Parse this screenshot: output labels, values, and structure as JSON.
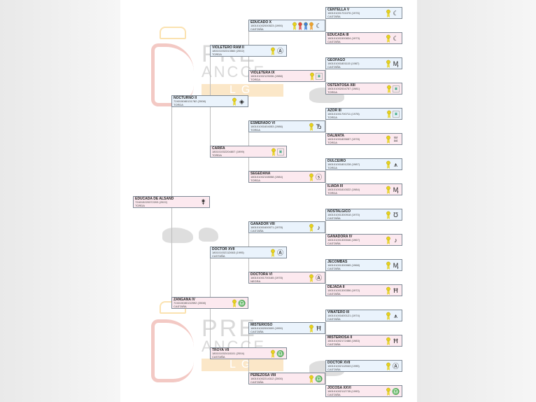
{
  "watermark": {
    "line1": "PRE",
    "line2": "ANCCE",
    "line3": "LG"
  },
  "colors": {
    "male_bg": "#eaf3fc",
    "female_bg": "#fce9ef",
    "border": "#7f8a96"
  },
  "medal_colors": {
    "yellow": "#e8d21a",
    "red": "#e04848",
    "blue": "#3d7fd8",
    "orange": "#f0a030"
  },
  "pedigree": [
    {
      "gen": 1,
      "pos": 0,
      "sex": "f",
      "name": "EDUCADA DE ALSAND",
      "id": "724015220372203 (2022)",
      "coat": "TORDA",
      "medals": [],
      "brand": "brand-glyph",
      "glyph": "⚵"
    },
    {
      "gen": 2,
      "pos": 0,
      "sex": "m",
      "name": "NOCTURNO II",
      "id": "724015080131782 (2008)",
      "coat": "TORDA",
      "medals": [
        "yellow"
      ],
      "brand": "diamond-brand",
      "glyph": "◈"
    },
    {
      "gen": 2,
      "pos": 1,
      "sex": "f",
      "name": "ZANGANA IV",
      "id": "724015080132592 (2008)",
      "coat": "CASTAÑA",
      "medals": [
        "yellow"
      ],
      "brand": "bell-brand",
      "glyph": "♎"
    },
    {
      "gen": 3,
      "pos": 0,
      "sex": "m",
      "name": "VIOLETERO RAM II",
      "id": "180101002313560 (2002)",
      "coat": "TORDA",
      "medals": [
        "yellow"
      ],
      "brand": "circled-a-brand",
      "glyph": "Ⓐ"
    },
    {
      "gen": 3,
      "pos": 1,
      "sex": "f",
      "name": "CARIFA",
      "id": "180101002204807 (1999)",
      "coat": "TORDA",
      "medals": [
        "yellow"
      ],
      "brand": "broken-image",
      "glyph": ""
    },
    {
      "gen": 3,
      "pos": 2,
      "sex": "m",
      "name": "DOCTOR XVII",
      "id": "180101002112663 (1995)",
      "coat": "CASTAÑA",
      "medals": [
        "yellow"
      ],
      "brand": "circled-a-brand",
      "glyph": "Ⓐ"
    },
    {
      "gen": 3,
      "pos": 3,
      "sex": "f",
      "name": "TROYA VII",
      "id": "180101002418101 (2004)",
      "coat": "CASTAÑA",
      "medals": [
        "yellow"
      ],
      "brand": "bell-brand",
      "glyph": "♎"
    },
    {
      "gen": 4,
      "pos": 0,
      "sex": "m",
      "name": "EDUCADO X",
      "id": "180101002000523 (1990)",
      "coat": "CASTAÑA",
      "medals": [
        "yellow",
        "red",
        "blue",
        "orange"
      ],
      "brand": "moon-brand",
      "glyph": "☾"
    },
    {
      "gen": 4,
      "pos": 1,
      "sex": "f",
      "name": "VIOLETERA IX",
      "id": "180101002125036 (1988)",
      "coat": "TORDA",
      "medals": [
        "yellow"
      ],
      "brand": "broken-image",
      "glyph": ""
    },
    {
      "gen": 4,
      "pos": 2,
      "sex": "m",
      "name": "ESMERADO VI",
      "id": "180101001604053 (1986)",
      "coat": "TORDA",
      "medals": [
        "yellow"
      ],
      "brand": "b-brand",
      "glyph": "Ђ"
    },
    {
      "gen": 4,
      "pos": 3,
      "sex": "f",
      "name": "SEGEDANA",
      "id": "180101002108058 (1984)",
      "coat": "TORDA",
      "medals": [
        "yellow"
      ],
      "brand": "circled-s-brand",
      "glyph": "ⓢ"
    },
    {
      "gen": 4,
      "pos": 4,
      "sex": "m",
      "name": "GANADOR VIII",
      "id": "180101001600071 (1978)",
      "coat": "CASTAÑA",
      "medals": [
        "yellow"
      ],
      "brand": "circled-note-brand",
      "glyph": "♪"
    },
    {
      "gen": 4,
      "pos": 5,
      "sex": "f",
      "name": "DOCTORA VI",
      "id": "180101001700165 (1978)",
      "coat": "NEGRA",
      "medals": [
        "yellow"
      ],
      "brand": "circled-a-brand",
      "glyph": "Ⓐ"
    },
    {
      "gen": 4,
      "pos": 6,
      "sex": "m",
      "name": "MISTERIOSO",
      "id": "180101002000009 (1990)",
      "coat": "CASTAÑA",
      "medals": [
        "yellow"
      ],
      "brand": "ladder-brand",
      "glyph": "Ħ"
    },
    {
      "gen": 4,
      "pos": 7,
      "sex": "f",
      "name": "PEREZOSA VIII",
      "id": "180101002214312 (2000)",
      "coat": "CASTAÑA",
      "medals": [
        "yellow"
      ],
      "brand": "bell-brand",
      "glyph": "♎"
    },
    {
      "gen": 5,
      "pos": 0,
      "sex": "m",
      "name": "CENTELLA V",
      "id": "180101001701076 (1976)",
      "coat": "CASTAÑA",
      "medals": [
        "yellow"
      ],
      "brand": "moon-brand",
      "glyph": "☾"
    },
    {
      "gen": 5,
      "pos": 1,
      "sex": "f",
      "name": "EDUCADA III",
      "id": "180101001500834 (1973)",
      "coat": "CASTAÑA",
      "medals": [
        "yellow"
      ],
      "brand": "moon-brand",
      "glyph": "☾"
    },
    {
      "gen": 5,
      "pos": 2,
      "sex": "m",
      "name": "GEOFAGO",
      "id": "180101001801115 (1987)",
      "coat": "CASTAÑA",
      "medals": [
        "yellow"
      ],
      "brand": "ym-brand",
      "glyph": "Ӎ"
    },
    {
      "gen": 5,
      "pos": 3,
      "sex": "f",
      "name": "OSTENTOSA XIII",
      "id": "180101002004757 (1981)",
      "coat": "TORDA",
      "medals": [
        "yellow"
      ],
      "brand": "broken-image",
      "glyph": ""
    },
    {
      "gen": 5,
      "pos": 4,
      "sex": "m",
      "name": "AZOR III",
      "id": "180101001700711 (1978)",
      "coat": "TORDA",
      "medals": [
        "yellow"
      ],
      "brand": "broken-image",
      "glyph": ""
    },
    {
      "gen": 5,
      "pos": 5,
      "sex": "f",
      "name": "DALMATA",
      "id": "180101001805657 (1978)",
      "coat": "TORDA",
      "medals": [
        "yellow"
      ],
      "brand": "castle-brand",
      "glyph": "♖"
    },
    {
      "gen": 5,
      "pos": 6,
      "sex": "m",
      "name": "DULCEIRO",
      "id": "180101001801228 (1987)",
      "coat": "TORDA",
      "medals": [
        "yellow"
      ],
      "brand": "compass-brand",
      "glyph": "⩚"
    },
    {
      "gen": 5,
      "pos": 7,
      "sex": "f",
      "name": "ILIADA III",
      "id": "180101001810022 (1984)",
      "coat": "TORDA",
      "medals": [
        "yellow"
      ],
      "brand": "ym-brand",
      "glyph": "Ӎ"
    },
    {
      "gen": 5,
      "pos": 8,
      "sex": "m",
      "name": "NOSTALGICO",
      "id": "180101001300918 (1970)",
      "coat": "CASTAÑA",
      "medals": [
        "yellow"
      ],
      "brand": "tu-brand",
      "glyph": "Ʊ"
    },
    {
      "gen": 5,
      "pos": 9,
      "sex": "f",
      "name": "GANADORA IV",
      "id": "180101001300046 (1967)",
      "coat": "CASTAÑA",
      "medals": [
        "yellow"
      ],
      "brand": "circled-note-brand",
      "glyph": "♪"
    },
    {
      "gen": 5,
      "pos": 10,
      "sex": "m",
      "name": "JECOMBAS",
      "id": "180101001300065 (1968)",
      "coat": "CASTAÑA",
      "medals": [
        "yellow"
      ],
      "brand": "ym-brand",
      "glyph": "Ӎ"
    },
    {
      "gen": 5,
      "pos": 11,
      "sex": "f",
      "name": "DEJADA II",
      "id": "180101001300356 (1972)",
      "coat": "CASTAÑA",
      "medals": [
        "yellow"
      ],
      "brand": "ladder-brand",
      "glyph": "Ħ"
    },
    {
      "gen": 5,
      "pos": 12,
      "sex": "m",
      "name": "VINATERO III",
      "id": "180101001600121 (1974)",
      "coat": "CASTAÑA",
      "medals": [
        "yellow"
      ],
      "brand": "compass-brand",
      "glyph": "⩚"
    },
    {
      "gen": 5,
      "pos": 13,
      "sex": "f",
      "name": "MISTERIOSA II",
      "id": "180101002172488 (1983)",
      "coat": "CASTAÑA",
      "medals": [
        "yellow"
      ],
      "brand": "ladder-brand",
      "glyph": "Ħ"
    },
    {
      "gen": 5,
      "pos": 14,
      "sex": "m",
      "name": "DOCTOR XVII",
      "id": "180101002112663 (1995)",
      "coat": "CASTAÑA",
      "medals": [
        "yellow"
      ],
      "brand": "circled-a-brand",
      "glyph": "Ⓐ"
    },
    {
      "gen": 5,
      "pos": 15,
      "sex": "f",
      "name": "JOCOSA XXVI",
      "id": "180101002112735 (1993)",
      "coat": "CASTAÑA",
      "medals": [
        "yellow"
      ],
      "brand": "bell-brand",
      "glyph": "♎"
    }
  ]
}
